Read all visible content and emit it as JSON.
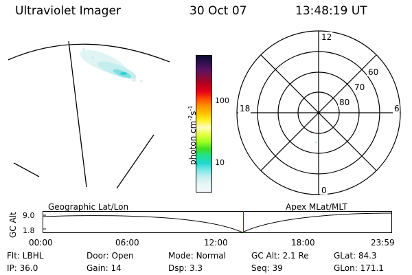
{
  "header": {
    "instrument": "Ultraviolet Imager",
    "date": "30 Oct 07",
    "time": "13:48:19 UT"
  },
  "colorbar": {
    "unit_label": "photon cm",
    "unit_sup1": "-2",
    "unit_s": "s",
    "unit_sup2": "-1",
    "tick_labels": [
      "100",
      "10"
    ],
    "colors": [
      "#0b0b33",
      "#32104f",
      "#5a1363",
      "#8a0a3a",
      "#b8001a",
      "#e4001a",
      "#ff4a00",
      "#ff9000",
      "#ffc000",
      "#fff020",
      "#fffcc0",
      "#e8ff40",
      "#a0ff20",
      "#40e020",
      "#20e090",
      "#20d8d0",
      "#80e8e8",
      "#c8f0f0",
      "#e8f6f6",
      "#f4f9f9"
    ]
  },
  "polar_plot": {
    "mlt_labels": {
      "top": "12",
      "left": "18",
      "right": "6",
      "bottom": "0"
    },
    "lat_labels": [
      "60",
      "70",
      "80"
    ]
  },
  "timeline": {
    "y_axis_label": "GC Alt",
    "y_ticks": [
      "9.0",
      "1.8"
    ],
    "left_label": "Geographic Lat/Lon",
    "right_label": "Apex MLat/MLT",
    "time_ticks": [
      "00:00",
      "06:00",
      "12:00",
      "18:00",
      "23:59"
    ],
    "current_time_fraction": 0.576,
    "marker_color": "#dd0000"
  },
  "status": {
    "rows": [
      [
        {
          "label": "Flt:",
          "value": "LBHL"
        },
        {
          "label": "Door:",
          "value": "Open"
        },
        {
          "label": "Mode:",
          "value": "Normal"
        },
        {
          "label": "GC Alt:",
          "value": "2.1 Re"
        },
        {
          "label": "GLat:",
          "value": "84.3"
        }
      ],
      [
        {
          "label": "IP:",
          "value": "36.0"
        },
        {
          "label": "Gain:",
          "value": "14"
        },
        {
          "label": "Dsp:",
          "value": "3.3"
        },
        {
          "label": "Seq:",
          "value": "39"
        },
        {
          "label": "GLon:",
          "value": "171.1"
        }
      ]
    ]
  }
}
